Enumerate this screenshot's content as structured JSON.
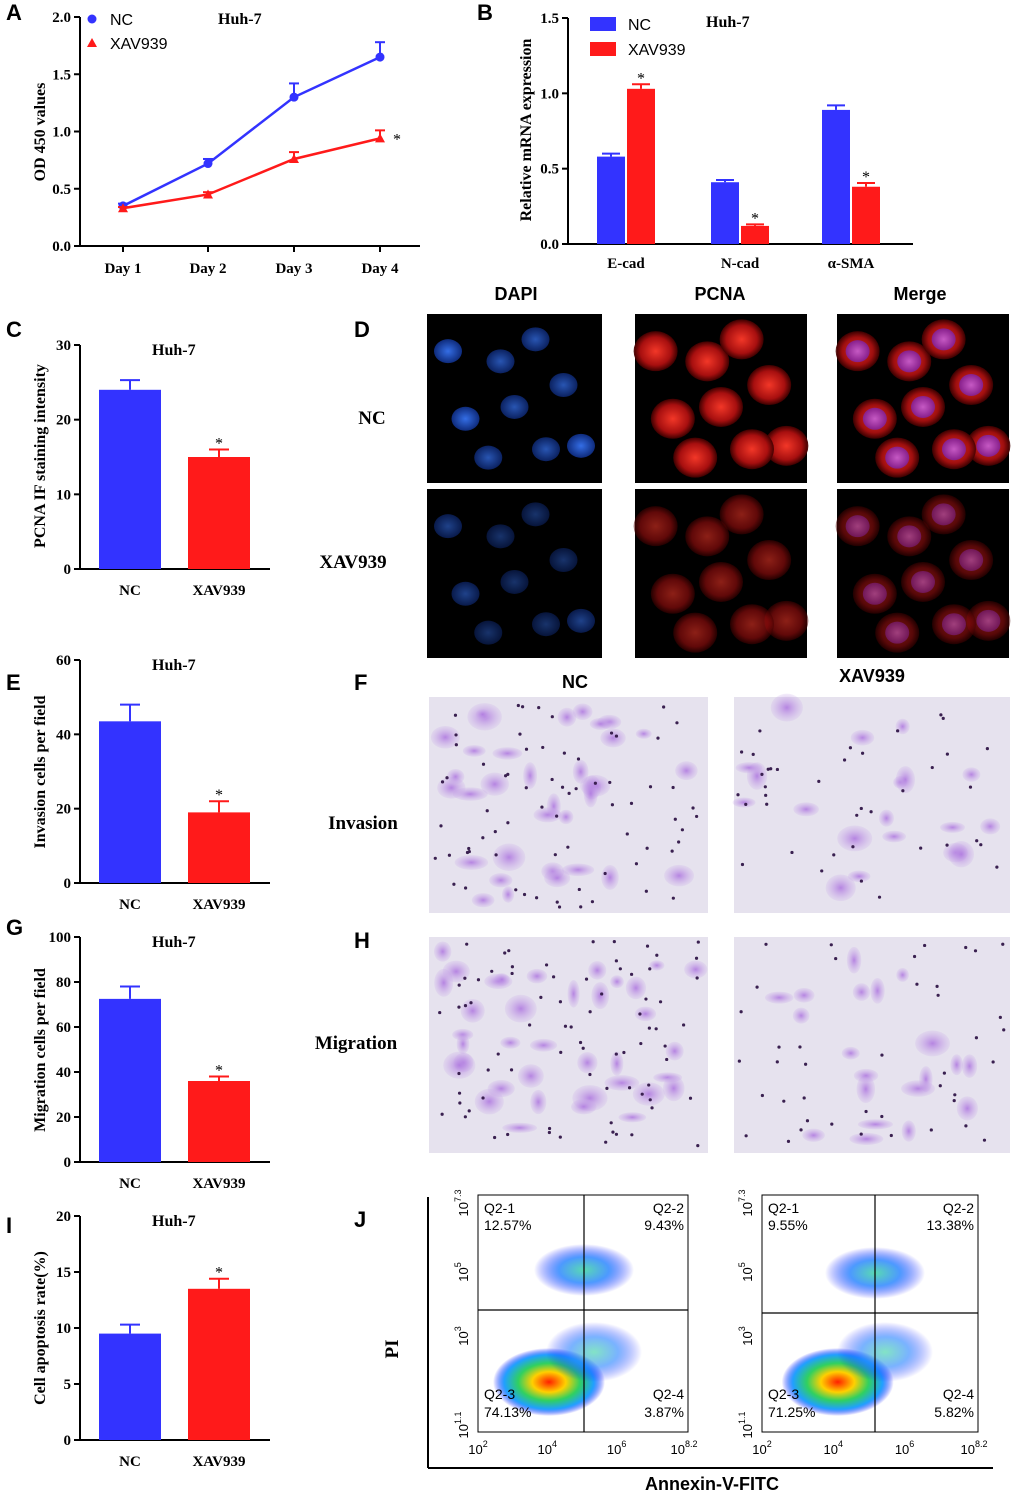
{
  "colors": {
    "nc": "#3333ff",
    "xav": "#ff1a1a",
    "dapi": "#1e5ad8",
    "pcna": "#d81a1a",
    "stain": "#a070d0"
  },
  "chart_data": [
    {
      "id": "A",
      "type": "line",
      "title": "Huh-7",
      "ylabel": "OD 450 values",
      "xlabel": "",
      "categories": [
        "Day 1",
        "Day 2",
        "Day 3",
        "Day 4"
      ],
      "ylim": [
        0,
        2.0
      ],
      "yticks": [
        "0.0",
        "0.5",
        "1.0",
        "1.5",
        "2.0"
      ],
      "series": [
        {
          "name": "NC",
          "values": [
            0.35,
            0.72,
            1.3,
            1.65
          ],
          "err": [
            0.02,
            0.04,
            0.12,
            0.13
          ]
        },
        {
          "name": "XAV939",
          "values": [
            0.33,
            0.45,
            0.76,
            0.94
          ],
          "err": [
            0.01,
            0.02,
            0.06,
            0.07
          ]
        }
      ],
      "annotations": [
        "*"
      ]
    },
    {
      "id": "B",
      "type": "bar",
      "title": "Huh-7",
      "ylabel": "Relative mRNA expression",
      "xlabel": "",
      "categories": [
        "E-cad",
        "N-cad",
        "α-SMA"
      ],
      "ylim": [
        0,
        1.5
      ],
      "yticks": [
        "0.0",
        "0.5",
        "1.0",
        "1.5"
      ],
      "series": [
        {
          "name": "NC",
          "values": [
            0.58,
            0.41,
            0.89
          ],
          "err": [
            0.02,
            0.015,
            0.03
          ]
        },
        {
          "name": "XAV939",
          "values": [
            1.03,
            0.12,
            0.38
          ],
          "err": [
            0.03,
            0.01,
            0.025
          ]
        }
      ],
      "annotations": [
        "*",
        "*",
        "*"
      ]
    },
    {
      "id": "C",
      "type": "bar",
      "title": "Huh-7",
      "ylabel": "PCNA IF staining intensity",
      "categories": [
        "NC",
        "XAV939"
      ],
      "values": [
        24.0,
        15.0
      ],
      "err": [
        1.3,
        1.0
      ],
      "ylim": [
        0,
        30
      ],
      "yticks": [
        "0",
        "10",
        "20",
        "30"
      ],
      "annotations": [
        "*"
      ]
    },
    {
      "id": "E",
      "type": "bar",
      "title": "Huh-7",
      "ylabel": "Invasion cells per field",
      "categories": [
        "NC",
        "XAV939"
      ],
      "values": [
        43.5,
        19.0
      ],
      "err": [
        4.5,
        3.0
      ],
      "ylim": [
        0,
        60
      ],
      "yticks": [
        "0",
        "20",
        "40",
        "60"
      ],
      "annotations": [
        "*"
      ]
    },
    {
      "id": "G",
      "type": "bar",
      "title": "Huh-7",
      "ylabel": "Migration cells per field",
      "categories": [
        "NC",
        "XAV939"
      ],
      "values": [
        72.5,
        36.0
      ],
      "err": [
        5.5,
        2.0
      ],
      "ylim": [
        0,
        100
      ],
      "yticks": [
        "0",
        "20",
        "40",
        "60",
        "80",
        "100"
      ],
      "annotations": [
        "*"
      ]
    },
    {
      "id": "I",
      "type": "bar",
      "title": "Huh-7",
      "ylabel": "Cell apoptosis rate(%)",
      "categories": [
        "NC",
        "XAV939"
      ],
      "values": [
        9.5,
        13.5
      ],
      "err": [
        0.8,
        0.9
      ],
      "ylim": [
        0,
        20
      ],
      "yticks": [
        "0",
        "5",
        "10",
        "15",
        "20"
      ],
      "annotations": [
        "*"
      ]
    }
  ],
  "panel_d": {
    "cols": [
      "DAPI",
      "PCNA",
      "Merge"
    ],
    "rows": [
      "NC",
      "XAV939"
    ]
  },
  "panel_f": {
    "cols": [
      "NC",
      "XAV939"
    ],
    "row": "Invasion"
  },
  "panel_h": {
    "row": "Migration"
  },
  "panel_j": {
    "ylabel": "PI",
    "xlabel": "Annexin-V-FITC",
    "xticks": [
      {
        "b": "10",
        "e": "2"
      },
      {
        "b": "10",
        "e": "4"
      },
      {
        "b": "10",
        "e": "6"
      },
      {
        "b": "10",
        "e": "8.2"
      }
    ],
    "yticks": [
      {
        "b": "10",
        "e": "1.1"
      },
      {
        "b": "10",
        "e": "3"
      },
      {
        "b": "10",
        "e": "5"
      },
      {
        "b": "10",
        "e": "7.3"
      }
    ],
    "plots": [
      {
        "q1": "Q2-1",
        "q1v": "12.57%",
        "q2": "Q2-2",
        "q2v": "9.43%",
        "q3": "Q2-3",
        "q3v": "74.13%",
        "q4": "Q2-4",
        "q4v": "3.87%"
      },
      {
        "q1": "Q2-1",
        "q1v": "9.55%",
        "q2": "Q2-2",
        "q2v": "13.38%",
        "q3": "Q2-3",
        "q3v": "71.25%",
        "q4": "Q2-4",
        "q4v": "5.82%"
      }
    ]
  }
}
